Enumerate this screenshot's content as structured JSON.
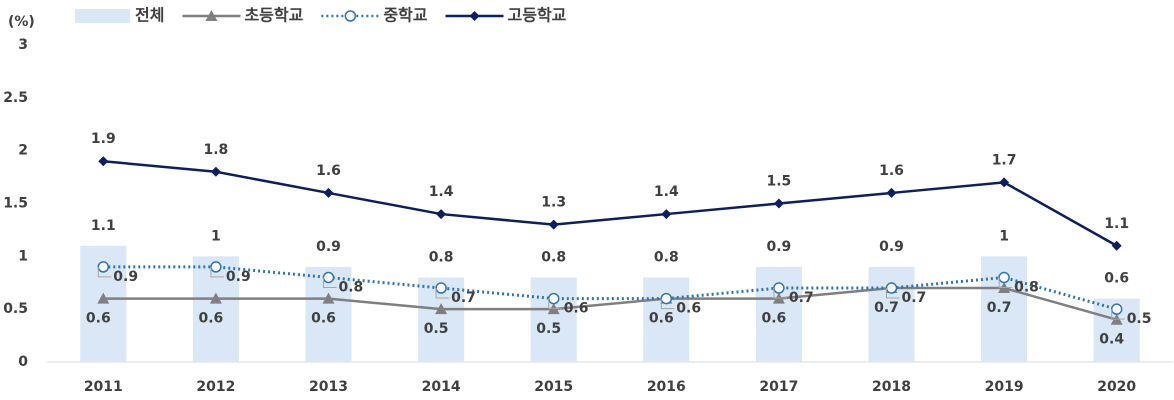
{
  "chart_data": {
    "type": "combo",
    "y_label": "(%)",
    "categories": [
      "2011",
      "2012",
      "2013",
      "2014",
      "2015",
      "2016",
      "2017",
      "2018",
      "2019",
      "2020"
    ],
    "series": [
      {
        "name": "전체",
        "type": "bar",
        "color": "#dae7f6",
        "values": [
          1.1,
          1,
          0.9,
          0.8,
          0.8,
          0.8,
          0.9,
          0.9,
          1,
          0.6
        ]
      },
      {
        "name": "초등학교",
        "type": "line",
        "marker": "triangle",
        "dash": "solid",
        "color": "#7f7f7f",
        "values": [
          0.6,
          0.6,
          0.6,
          0.5,
          0.5,
          0.6,
          0.6,
          0.7,
          0.7,
          0.4
        ]
      },
      {
        "name": "중학교",
        "type": "line",
        "marker": "circle",
        "dash": "dotted",
        "color": "#2e75b6",
        "values": [
          0.9,
          0.9,
          0.8,
          0.7,
          0.6,
          0.6,
          0.7,
          0.7,
          0.8,
          0.5
        ]
      },
      {
        "name": "고등학교",
        "type": "line",
        "marker": "diamond",
        "dash": "solid",
        "color": "#0d1f5c",
        "values": [
          1.9,
          1.8,
          1.6,
          1.4,
          1.3,
          1.4,
          1.5,
          1.6,
          1.7,
          1.1
        ]
      }
    ],
    "ylim": [
      0,
      3
    ],
    "yticks": [
      0,
      0.5,
      1,
      1.5,
      2,
      2.5,
      3
    ],
    "grid": false,
    "legend": "top-left"
  }
}
